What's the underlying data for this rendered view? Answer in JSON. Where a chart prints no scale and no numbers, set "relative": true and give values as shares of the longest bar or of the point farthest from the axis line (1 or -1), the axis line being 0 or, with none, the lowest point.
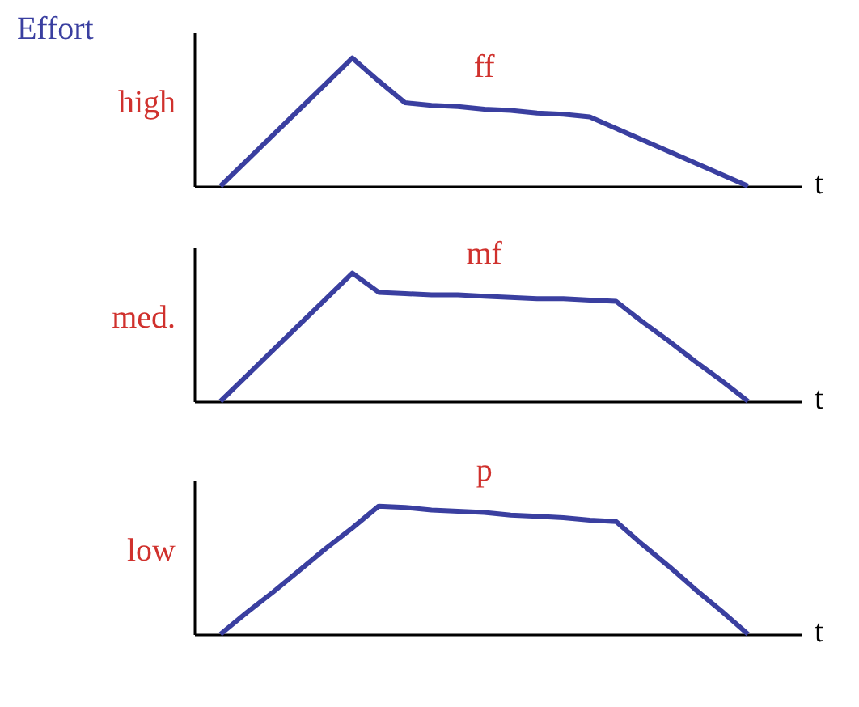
{
  "chart_data": [
    {
      "type": "line",
      "title": "Effort",
      "ylabel": "high",
      "xlabel": "t",
      "relative": true,
      "tick_labels": false,
      "grid": false,
      "marker": "none",
      "line_style": "solid",
      "categories": [
        null,
        null,
        null,
        null,
        null,
        null,
        null,
        null,
        null,
        null,
        null,
        null,
        null,
        null,
        null,
        null,
        null,
        null,
        null,
        null,
        null,
        null,
        null,
        null
      ],
      "series": [
        {
          "name": "ff",
          "color": "#3a3fa0",
          "values": [
            null,
            0,
            0.2,
            0.4,
            0.6,
            0.8,
            1.0,
            0.82,
            0.65,
            0.63,
            0.62,
            0.6,
            0.59,
            0.57,
            0.56,
            0.54,
            0.45,
            0.36,
            0.27,
            0.18,
            0.09,
            0,
            null,
            null
          ]
        }
      ]
    },
    {
      "type": "line",
      "ylabel": "med.",
      "xlabel": "t",
      "relative": true,
      "tick_labels": false,
      "grid": false,
      "marker": "none",
      "line_style": "solid",
      "categories": [
        null,
        null,
        null,
        null,
        null,
        null,
        null,
        null,
        null,
        null,
        null,
        null,
        null,
        null,
        null,
        null,
        null,
        null,
        null,
        null,
        null,
        null,
        null,
        null
      ],
      "series": [
        {
          "name": "mf",
          "color": "#3a3fa0",
          "values": [
            null,
            0,
            0.2,
            0.4,
            0.6,
            0.8,
            1.0,
            0.85,
            0.84,
            0.83,
            0.83,
            0.82,
            0.81,
            0.8,
            0.8,
            0.79,
            0.78,
            0.62,
            0.47,
            0.31,
            0.16,
            0,
            null,
            null
          ]
        }
      ]
    },
    {
      "type": "line",
      "ylabel": "low",
      "xlabel": "t",
      "relative": true,
      "tick_labels": false,
      "grid": false,
      "marker": "none",
      "line_style": "solid",
      "categories": [
        null,
        null,
        null,
        null,
        null,
        null,
        null,
        null,
        null,
        null,
        null,
        null,
        null,
        null,
        null,
        null,
        null,
        null,
        null,
        null,
        null,
        null,
        null,
        null
      ],
      "series": [
        {
          "name": "p",
          "color": "#3a3fa0",
          "values": [
            null,
            0,
            0.17,
            0.33,
            0.5,
            0.67,
            0.83,
            1.0,
            0.99,
            0.97,
            0.96,
            0.95,
            0.93,
            0.92,
            0.91,
            0.89,
            0.88,
            0.7,
            0.53,
            0.35,
            0.18,
            0,
            null,
            null
          ]
        }
      ]
    }
  ]
}
